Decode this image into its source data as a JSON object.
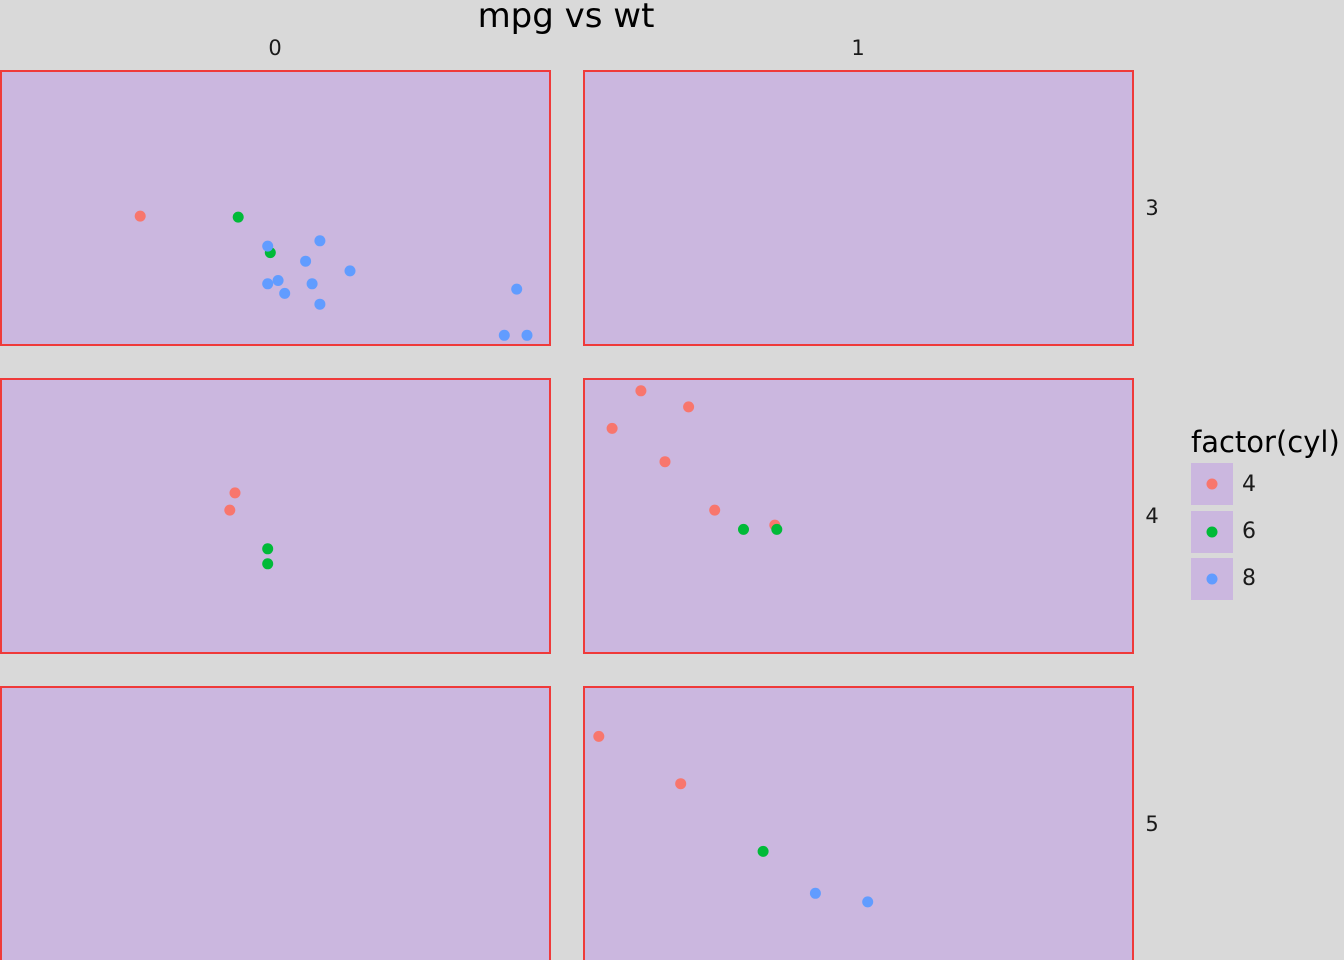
{
  "chart_data": {
    "type": "scatter",
    "title": "mpg vs wt",
    "xlabel": "",
    "ylabel": "",
    "facet_cols": [
      "0",
      "1"
    ],
    "facet_rows": [
      "3",
      "4",
      "5"
    ],
    "xlim": [
      1.4,
      5.6
    ],
    "ylim": [
      9.5,
      35
    ],
    "grid": false,
    "panel_fill": "#cbb7df",
    "panel_border": "#ef3a3a",
    "background": "#d9d9d9",
    "legend": {
      "title": "factor(cyl)",
      "placement": "right",
      "entries": [
        {
          "label": "4",
          "color": "#f8766d"
        },
        {
          "label": "6",
          "color": "#00ba38"
        },
        {
          "label": "8",
          "color": "#619cff"
        }
      ]
    },
    "points": [
      {
        "row": "3",
        "col": "0",
        "cyl": "4",
        "wt": 2.465,
        "mpg": 21.5
      },
      {
        "row": "3",
        "col": "0",
        "cyl": "6",
        "wt": 3.215,
        "mpg": 21.4
      },
      {
        "row": "3",
        "col": "0",
        "cyl": "6",
        "wt": 3.46,
        "mpg": 18.1
      },
      {
        "row": "3",
        "col": "0",
        "cyl": "8",
        "wt": 3.44,
        "mpg": 18.7
      },
      {
        "row": "3",
        "col": "0",
        "cyl": "8",
        "wt": 3.84,
        "mpg": 19.2
      },
      {
        "row": "3",
        "col": "0",
        "cyl": "8",
        "wt": 3.73,
        "mpg": 17.3
      },
      {
        "row": "3",
        "col": "0",
        "cyl": "8",
        "wt": 4.07,
        "mpg": 16.4
      },
      {
        "row": "3",
        "col": "0",
        "cyl": "8",
        "wt": 3.44,
        "mpg": 15.2
      },
      {
        "row": "3",
        "col": "0",
        "cyl": "8",
        "wt": 3.52,
        "mpg": 15.5
      },
      {
        "row": "3",
        "col": "0",
        "cyl": "8",
        "wt": 3.57,
        "mpg": 14.3
      },
      {
        "row": "3",
        "col": "0",
        "cyl": "8",
        "wt": 3.78,
        "mpg": 15.2
      },
      {
        "row": "3",
        "col": "0",
        "cyl": "8",
        "wt": 3.84,
        "mpg": 13.3
      },
      {
        "row": "3",
        "col": "0",
        "cyl": "8",
        "wt": 5.345,
        "mpg": 14.7
      },
      {
        "row": "3",
        "col": "0",
        "cyl": "8",
        "wt": 5.25,
        "mpg": 10.4
      },
      {
        "row": "3",
        "col": "0",
        "cyl": "8",
        "wt": 5.424,
        "mpg": 10.4
      },
      {
        "row": "4",
        "col": "0",
        "cyl": "4",
        "wt": 3.19,
        "mpg": 24.4
      },
      {
        "row": "4",
        "col": "0",
        "cyl": "4",
        "wt": 3.15,
        "mpg": 22.8
      },
      {
        "row": "4",
        "col": "0",
        "cyl": "6",
        "wt": 3.44,
        "mpg": 19.2
      },
      {
        "row": "4",
        "col": "0",
        "cyl": "6",
        "wt": 3.44,
        "mpg": 17.8
      },
      {
        "row": "4",
        "col": "1",
        "cyl": "4",
        "wt": 1.835,
        "mpg": 33.9
      },
      {
        "row": "4",
        "col": "1",
        "cyl": "4",
        "wt": 2.2,
        "mpg": 32.4
      },
      {
        "row": "4",
        "col": "1",
        "cyl": "4",
        "wt": 1.615,
        "mpg": 30.4
      },
      {
        "row": "4",
        "col": "1",
        "cyl": "4",
        "wt": 2.02,
        "mpg": 27.3
      },
      {
        "row": "4",
        "col": "1",
        "cyl": "4",
        "wt": 2.4,
        "mpg": 22.8
      },
      {
        "row": "4",
        "col": "1",
        "cyl": "4",
        "wt": 2.86,
        "mpg": 21.4
      },
      {
        "row": "4",
        "col": "1",
        "cyl": "6",
        "wt": 2.62,
        "mpg": 21.0
      },
      {
        "row": "4",
        "col": "1",
        "cyl": "6",
        "wt": 2.875,
        "mpg": 21.0
      },
      {
        "row": "5",
        "col": "1",
        "cyl": "4",
        "wt": 1.513,
        "mpg": 30.4
      },
      {
        "row": "5",
        "col": "1",
        "cyl": "4",
        "wt": 2.14,
        "mpg": 26.0
      },
      {
        "row": "5",
        "col": "1",
        "cyl": "6",
        "wt": 2.77,
        "mpg": 19.7
      },
      {
        "row": "5",
        "col": "1",
        "cyl": "8",
        "wt": 3.17,
        "mpg": 15.8
      },
      {
        "row": "5",
        "col": "1",
        "cyl": "8",
        "wt": 3.57,
        "mpg": 15.0
      }
    ]
  }
}
